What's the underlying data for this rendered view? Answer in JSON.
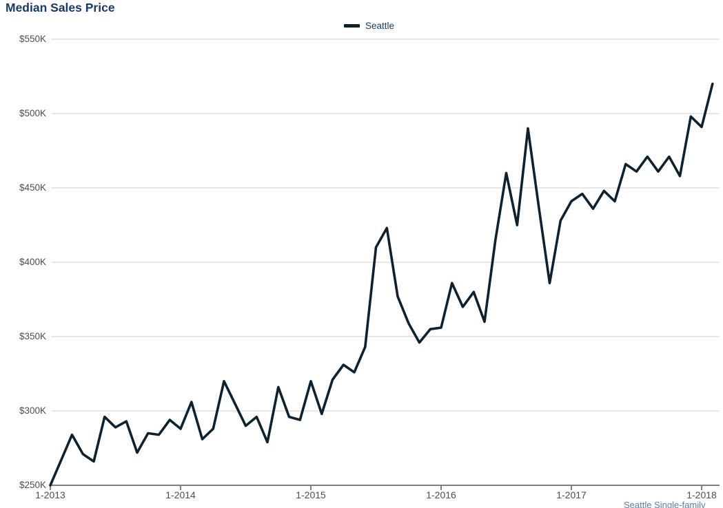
{
  "title": "Median Sales Price",
  "legend": {
    "series_label": "Seattle"
  },
  "footer": {
    "source_note": "Seattle Single-family"
  },
  "colors": {
    "title": "#1a3a6a",
    "legend_text": "#1a3a6a",
    "line": "#0d2130",
    "grid": "#cccccc",
    "axis": "#7f7f7f",
    "tick_label": "#4d4d4d",
    "footer_text": "#5b7ca3",
    "background": "#ffffff"
  },
  "chart_data": {
    "type": "line",
    "title": "Median Sales Price",
    "xlabel": "",
    "ylabel": "",
    "x_unit": "month",
    "x_range": [
      "1-2013",
      "2-2018"
    ],
    "x_tick_labels": [
      "1-2013",
      "1-2014",
      "1-2015",
      "1-2016",
      "1-2017",
      "1-2018"
    ],
    "x_tick_month_indices": [
      0,
      12,
      24,
      36,
      48,
      60
    ],
    "y_tick_labels": [
      "$550K",
      "$500K",
      "$450K",
      "$400K",
      "$350K",
      "$300K",
      "$250K"
    ],
    "y_tick_values_k": [
      550,
      500,
      450,
      400,
      350,
      300,
      250
    ],
    "ylim_k": [
      250,
      550
    ],
    "grid": "horizontal",
    "legend_position": "top-center",
    "series": [
      {
        "name": "Seattle",
        "unit": "USD thousands",
        "months": [
          "2013-01 … 2018-02 monthly"
        ],
        "values": [
          250,
          267,
          284,
          271,
          266,
          296,
          289,
          293,
          272,
          285,
          284,
          294,
          288,
          306,
          281,
          288,
          320,
          305,
          290,
          296,
          279,
          316,
          296,
          294,
          320,
          298,
          321,
          331,
          326,
          343,
          410,
          423,
          377,
          359,
          346,
          355,
          356,
          386,
          370,
          380,
          360,
          415,
          460,
          425,
          490,
          437,
          386,
          428,
          441,
          446,
          436,
          448,
          441,
          466,
          461,
          471,
          461,
          471,
          458,
          498,
          491,
          520
        ]
      }
    ]
  }
}
